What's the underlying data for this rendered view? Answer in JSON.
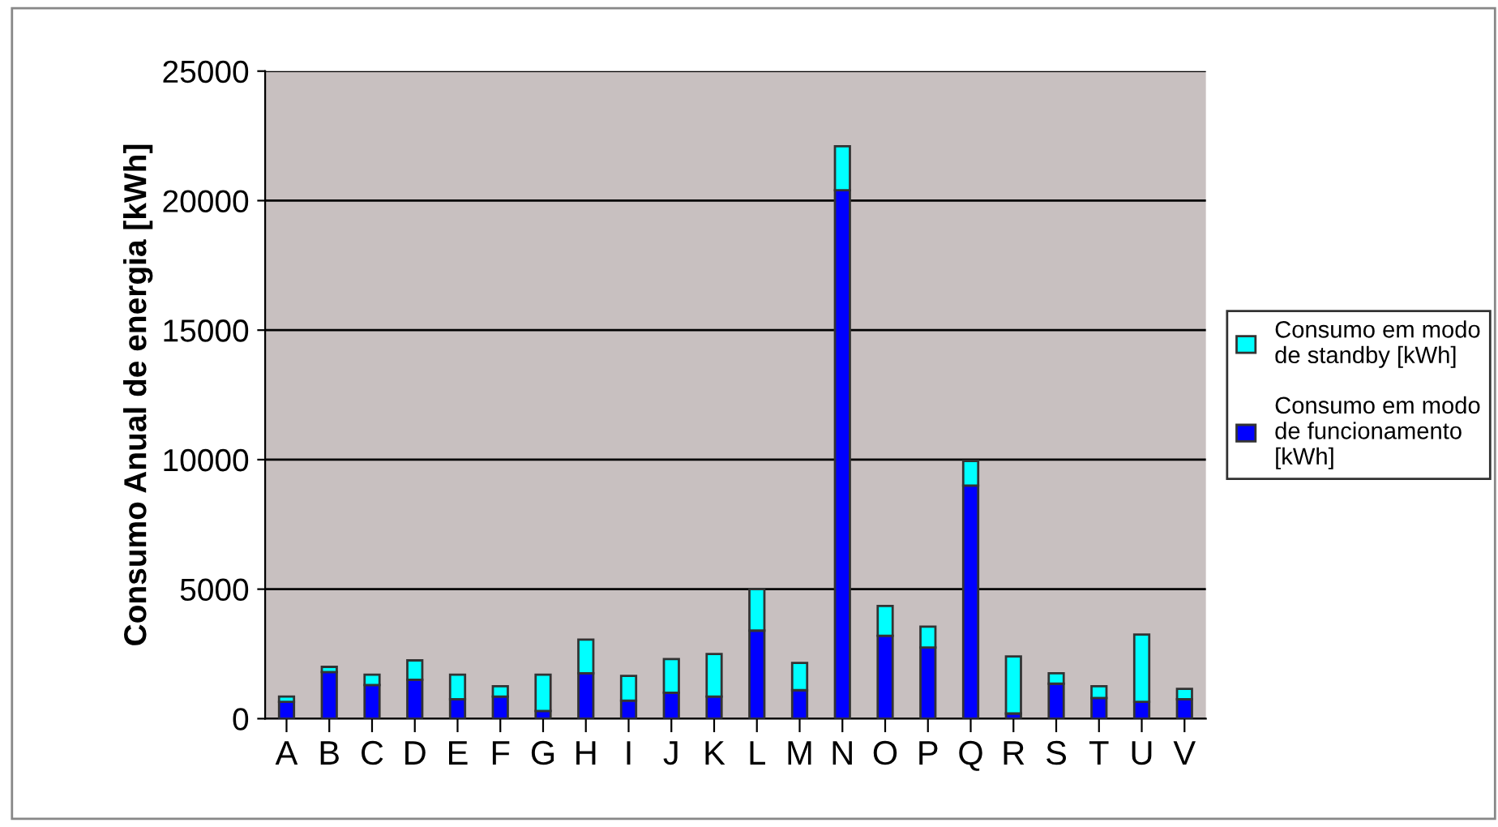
{
  "chart_data": {
    "type": "bar",
    "stacked": true,
    "ylabel": "Consumo Anual de energia [kWh]",
    "categories": [
      "A",
      "B",
      "C",
      "D",
      "E",
      "F",
      "G",
      "H",
      "I",
      "J",
      "K",
      "L",
      "M",
      "N",
      "O",
      "P",
      "Q",
      "R",
      "S",
      "T",
      "U",
      "V"
    ],
    "series": [
      {
        "name": "Consumo em modo de funcionamento [kWh]",
        "color": "#0000ff",
        "values": [
          650,
          1800,
          1300,
          1500,
          750,
          850,
          300,
          1750,
          700,
          1000,
          850,
          3400,
          1100,
          20400,
          3200,
          2750,
          9000,
          200,
          1350,
          800,
          650,
          750
        ]
      },
      {
        "name": "Consumo em modo de standby [kWh]",
        "color": "#00ffff",
        "values": [
          200,
          200,
          400,
          750,
          950,
          400,
          1400,
          1300,
          950,
          1300,
          1650,
          1600,
          1050,
          1700,
          1150,
          800,
          950,
          2200,
          400,
          450,
          2600,
          400
        ]
      }
    ],
    "ylim": [
      0,
      25000
    ],
    "yticks": [
      0,
      5000,
      10000,
      15000,
      20000,
      25000
    ],
    "grid": "y",
    "legend": "right"
  }
}
